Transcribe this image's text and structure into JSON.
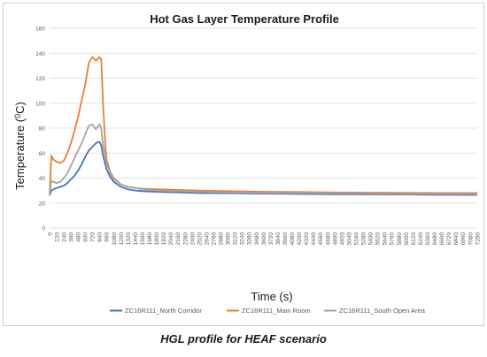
{
  "caption": "HGL profile for HEAF scenario",
  "chart_data": {
    "type": "line",
    "title": "Hot Gas Layer Temperature Profile",
    "xlabel": "Time (s)",
    "ylabel": "Temperature (",
    "ylabel_sup": "0",
    "ylabel_end": "C)",
    "xlim": [
      0,
      7200
    ],
    "ylim": [
      0,
      160
    ],
    "y_ticks": [
      0,
      20,
      40,
      60,
      80,
      100,
      120,
      140,
      160
    ],
    "x_tick_step": 120,
    "grid": "horizontal",
    "legend_position": "bottom",
    "series": [
      {
        "name": "ZC16R111_North Corridor",
        "color": "#4472C4",
        "points": [
          [
            0,
            26
          ],
          [
            30,
            30
          ],
          [
            60,
            31
          ],
          [
            120,
            32
          ],
          [
            180,
            33
          ],
          [
            240,
            34
          ],
          [
            300,
            36
          ],
          [
            360,
            39
          ],
          [
            420,
            42
          ],
          [
            480,
            46
          ],
          [
            540,
            51
          ],
          [
            600,
            57
          ],
          [
            660,
            62
          ],
          [
            720,
            65
          ],
          [
            780,
            68
          ],
          [
            840,
            69
          ],
          [
            870,
            66
          ],
          [
            900,
            58
          ],
          [
            960,
            47
          ],
          [
            1020,
            41
          ],
          [
            1080,
            37
          ],
          [
            1200,
            33
          ],
          [
            1320,
            31
          ],
          [
            1440,
            30
          ],
          [
            1560,
            29.5
          ],
          [
            1800,
            29
          ],
          [
            2160,
            28.5
          ],
          [
            2520,
            28
          ],
          [
            3000,
            27.8
          ],
          [
            3600,
            27.5
          ],
          [
            4200,
            27.3
          ],
          [
            4800,
            27
          ],
          [
            5400,
            26.9
          ],
          [
            6000,
            26.8
          ],
          [
            6600,
            26.6
          ],
          [
            7200,
            26.5
          ]
        ]
      },
      {
        "name": "ZC16R111_Main Room",
        "color": "#ED7D31",
        "points": [
          [
            0,
            27
          ],
          [
            30,
            58
          ],
          [
            60,
            55
          ],
          [
            120,
            53
          ],
          [
            180,
            52
          ],
          [
            240,
            54
          ],
          [
            300,
            60
          ],
          [
            360,
            68
          ],
          [
            420,
            78
          ],
          [
            480,
            89
          ],
          [
            540,
            102
          ],
          [
            600,
            115
          ],
          [
            660,
            132
          ],
          [
            720,
            137
          ],
          [
            780,
            134
          ],
          [
            840,
            137
          ],
          [
            870,
            135
          ],
          [
            900,
            100
          ],
          [
            940,
            65
          ],
          [
            960,
            55
          ],
          [
            1020,
            45
          ],
          [
            1080,
            40
          ],
          [
            1200,
            35
          ],
          [
            1320,
            33
          ],
          [
            1440,
            32
          ],
          [
            1560,
            31.5
          ],
          [
            1800,
            31
          ],
          [
            2160,
            30.5
          ],
          [
            2520,
            30
          ],
          [
            3000,
            29.5
          ],
          [
            3600,
            29
          ],
          [
            4200,
            28.8
          ],
          [
            4800,
            28.5
          ],
          [
            5400,
            28.3
          ],
          [
            6000,
            28.2
          ],
          [
            6600,
            28
          ],
          [
            7200,
            28
          ]
        ]
      },
      {
        "name": "ZC16R111_South Open Area",
        "color": "#A5A5A5",
        "points": [
          [
            0,
            26
          ],
          [
            30,
            38
          ],
          [
            60,
            37
          ],
          [
            120,
            36
          ],
          [
            180,
            37
          ],
          [
            240,
            40
          ],
          [
            300,
            44
          ],
          [
            360,
            50
          ],
          [
            420,
            56
          ],
          [
            480,
            62
          ],
          [
            540,
            68
          ],
          [
            600,
            75
          ],
          [
            660,
            82
          ],
          [
            720,
            83
          ],
          [
            780,
            79
          ],
          [
            840,
            83
          ],
          [
            870,
            80
          ],
          [
            900,
            66
          ],
          [
            960,
            52
          ],
          [
            1020,
            44
          ],
          [
            1080,
            39
          ],
          [
            1200,
            35
          ],
          [
            1320,
            33
          ],
          [
            1440,
            32
          ],
          [
            1560,
            31
          ],
          [
            1800,
            30
          ],
          [
            2160,
            29.5
          ],
          [
            2520,
            29
          ],
          [
            3000,
            28.5
          ],
          [
            3600,
            28.2
          ],
          [
            4200,
            28
          ],
          [
            4800,
            27.8
          ],
          [
            5400,
            27.6
          ],
          [
            6000,
            27.4
          ],
          [
            6600,
            27.3
          ],
          [
            7200,
            27.2
          ]
        ]
      }
    ]
  }
}
